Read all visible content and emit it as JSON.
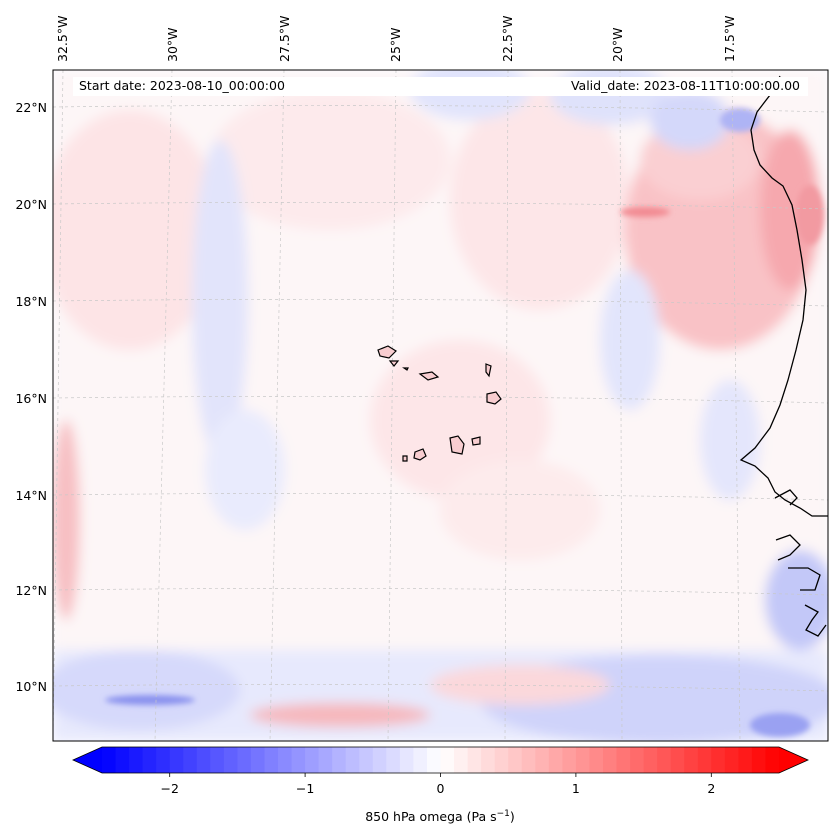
{
  "map": {
    "start_label": "Start date: 2023-08-10_00:00:00",
    "valid_label": "Valid_date: 2023-08-11T10:00:00.00",
    "lon_labels": [
      "32.5°W",
      "30°W",
      "27.5°W",
      "25°W",
      "22.5°W",
      "20°W",
      "17.5°W"
    ],
    "lat_labels": [
      "22°N",
      "20°N",
      "18°N",
      "16°N",
      "14°N",
      "12°N",
      "10°N"
    ]
  },
  "colorbar": {
    "title": "850 hPa omega (Pa s",
    "title_exp": "−1",
    "title_close": ")",
    "ticks": [
      "−2",
      "−1",
      "0",
      "1",
      "2"
    ],
    "tick_values": [
      -2,
      -1,
      0,
      1,
      2
    ],
    "range": [
      -2.5,
      2.5
    ],
    "levels": 50,
    "colormap": "bwr",
    "low_color": "#0000ff",
    "mid_color": "#ffffff",
    "high_color": "#ff0000"
  },
  "colors": {
    "coast": "#000000",
    "grid": "#cccccc"
  }
}
